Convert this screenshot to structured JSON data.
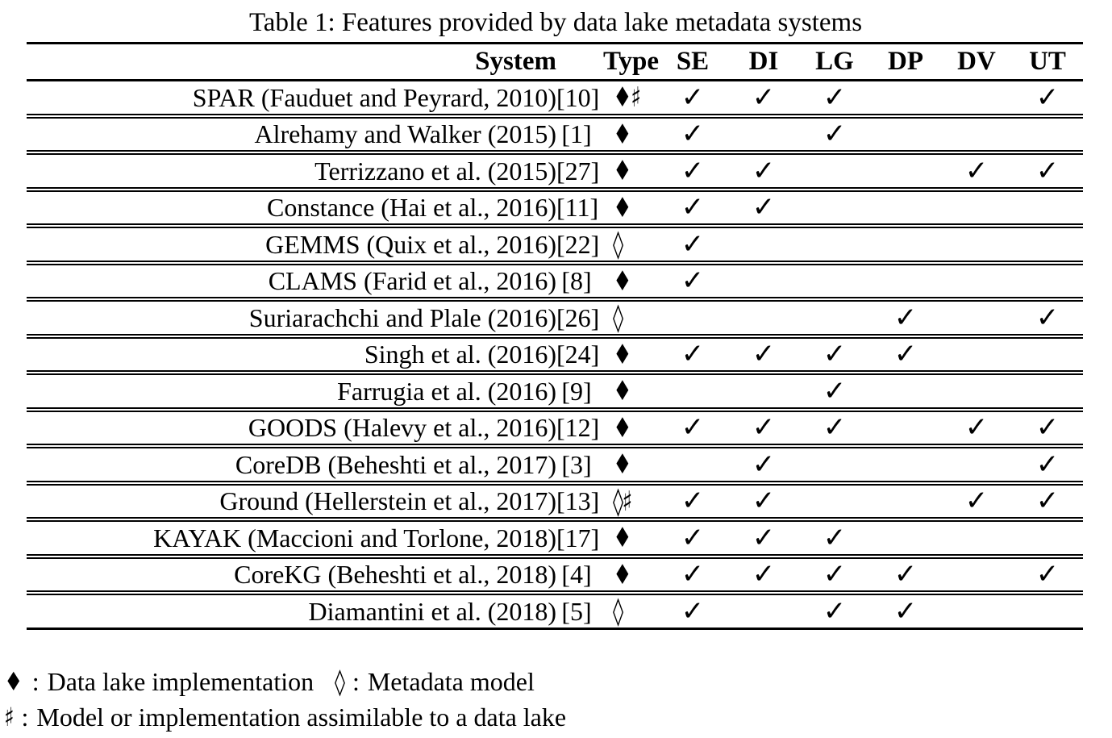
{
  "title": "Table 1: Features provided by data lake metadata systems",
  "table": {
    "headers": {
      "system": "System",
      "type": "Type",
      "features": [
        "SE",
        "DI",
        "LG",
        "DP",
        "DV",
        "UT"
      ]
    },
    "check_glyph": "✓",
    "rows": [
      {
        "system": "SPAR (Fauduet and Peyrard, 2010)",
        "ref": "[10]",
        "type": "♦♯",
        "features": [
          1,
          1,
          1,
          0,
          0,
          1
        ]
      },
      {
        "system": "Alrehamy and Walker (2015)",
        "ref": "[1]",
        "type": "♦",
        "features": [
          1,
          0,
          1,
          0,
          0,
          0
        ]
      },
      {
        "system": "Terrizzano et al. (2015)",
        "ref": "[27]",
        "type": "♦",
        "features": [
          1,
          1,
          0,
          0,
          1,
          1
        ]
      },
      {
        "system": "Constance (Hai et al., 2016)",
        "ref": "[11]",
        "type": "♦",
        "features": [
          1,
          1,
          0,
          0,
          0,
          0
        ]
      },
      {
        "system": "GEMMS (Quix et al., 2016)",
        "ref": "[22]",
        "type": "◊",
        "features": [
          1,
          0,
          0,
          0,
          0,
          0
        ]
      },
      {
        "system": "CLAMS (Farid et al., 2016)",
        "ref": "[8]",
        "type": "♦",
        "features": [
          1,
          0,
          0,
          0,
          0,
          0
        ]
      },
      {
        "system": "Suriarachchi and Plale (2016)",
        "ref": "[26]",
        "type": "◊",
        "features": [
          0,
          0,
          0,
          1,
          0,
          1
        ]
      },
      {
        "system": "Singh et al. (2016)",
        "ref": "[24]",
        "type": "♦",
        "features": [
          1,
          1,
          1,
          1,
          0,
          0
        ]
      },
      {
        "system": "Farrugia et al. (2016)",
        "ref": "[9]",
        "type": "♦",
        "features": [
          0,
          0,
          1,
          0,
          0,
          0
        ]
      },
      {
        "system": "GOODS (Halevy et al., 2016)",
        "ref": "[12]",
        "type": "♦",
        "features": [
          1,
          1,
          1,
          0,
          1,
          1
        ]
      },
      {
        "system": "CoreDB (Beheshti et al., 2017)",
        "ref": "[3]",
        "type": "♦",
        "features": [
          0,
          1,
          0,
          0,
          0,
          1
        ]
      },
      {
        "system": "Ground (Hellerstein et al., 2017)",
        "ref": "[13]",
        "type": "◊♯",
        "features": [
          1,
          1,
          0,
          0,
          1,
          1
        ]
      },
      {
        "system": "KAYAK (Maccioni and Torlone, 2018)",
        "ref": "[17]",
        "type": "♦",
        "features": [
          1,
          1,
          1,
          0,
          0,
          0
        ]
      },
      {
        "system": "CoreKG (Beheshti et al., 2018)",
        "ref": "[4]",
        "type": "♦",
        "features": [
          1,
          1,
          1,
          1,
          0,
          1
        ]
      },
      {
        "system": "Diamantini et al. (2018)",
        "ref": "[5]",
        "type": "◊",
        "features": [
          1,
          0,
          1,
          1,
          0,
          0
        ]
      }
    ]
  },
  "legend": {
    "colon": ":",
    "items": [
      {
        "symbol": "♦",
        "label": "Data lake implementation"
      },
      {
        "symbol": "◊",
        "label": "Metadata model"
      },
      {
        "symbol": "♯",
        "label": "Model or implementation assimilable to a data lake"
      }
    ]
  },
  "colors": {
    "text": "#000000",
    "background": "#ffffff"
  }
}
